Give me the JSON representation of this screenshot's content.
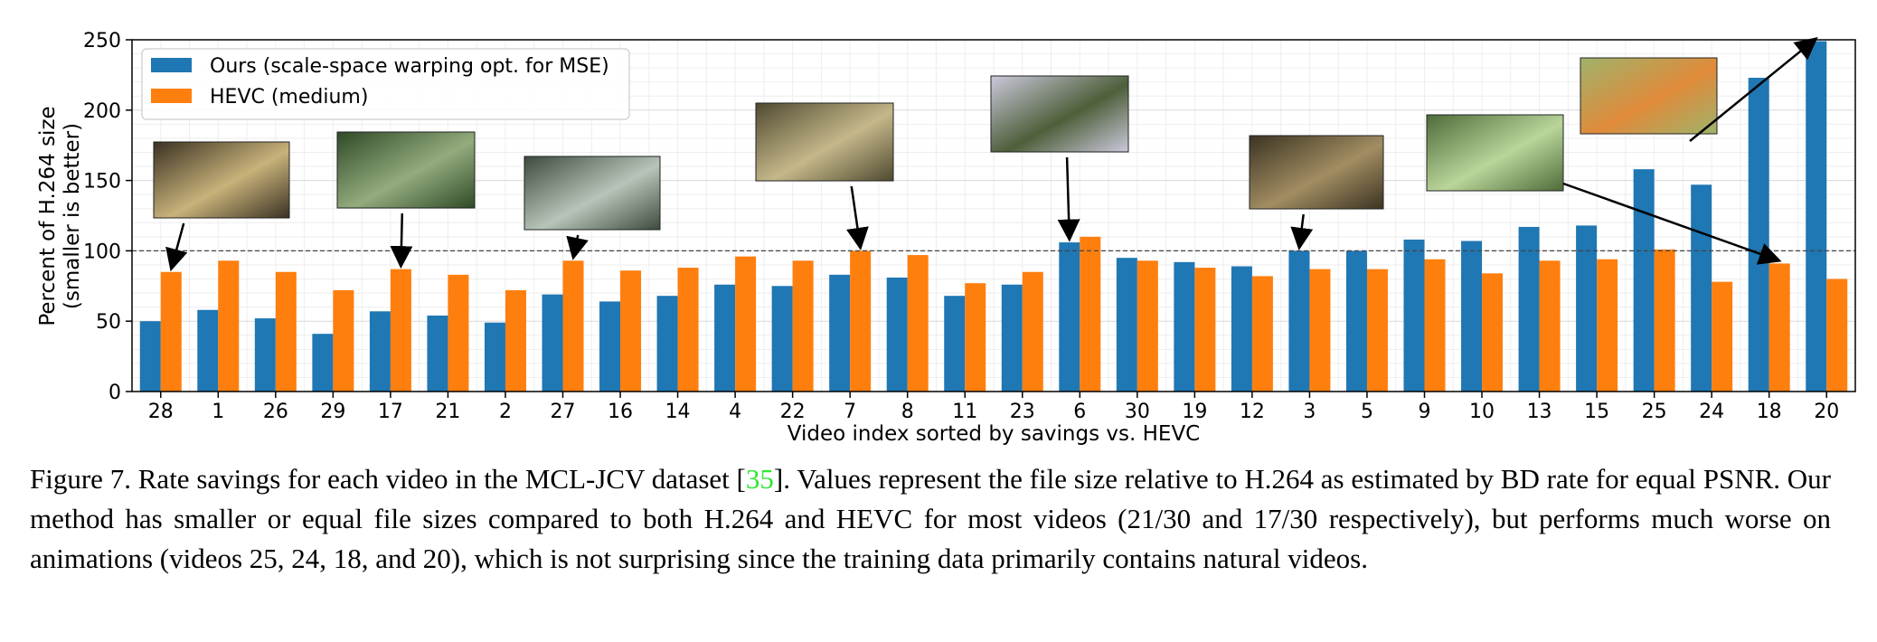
{
  "chart_data": {
    "type": "bar",
    "categories": [
      "28",
      "1",
      "26",
      "29",
      "17",
      "21",
      "2",
      "27",
      "16",
      "14",
      "4",
      "22",
      "7",
      "8",
      "11",
      "23",
      "6",
      "30",
      "19",
      "12",
      "3",
      "5",
      "9",
      "10",
      "13",
      "15",
      "25",
      "24",
      "18",
      "20"
    ],
    "series": [
      {
        "name": "Ours (scale-space warping opt. for MSE)",
        "color": "#1f77b4",
        "values": [
          50,
          58,
          52,
          41,
          57,
          54,
          49,
          69,
          64,
          68,
          76,
          75,
          83,
          81,
          68,
          76,
          106,
          95,
          92,
          89,
          100,
          100,
          108,
          107,
          117,
          118,
          158,
          147,
          223,
          249
        ]
      },
      {
        "name": "HEVC (medium)",
        "color": "#ff7f0e",
        "values": [
          85,
          93,
          85,
          72,
          87,
          83,
          72,
          93,
          86,
          88,
          96,
          93,
          100,
          97,
          77,
          85,
          110,
          93,
          88,
          82,
          87,
          87,
          94,
          84,
          93,
          94,
          101,
          78,
          91,
          80
        ]
      }
    ],
    "xlabel": "Video index sorted by savings vs. HEVC",
    "ylabel": [
      "Percent of H.264 size",
      "(smaller is better)"
    ],
    "ylim": [
      0,
      250
    ],
    "yticks": [
      0,
      50,
      100,
      150,
      200,
      250
    ],
    "reference_line": 100,
    "grid": true,
    "legend_position": "top-left",
    "annotated_videos": [
      "28",
      "17",
      "27",
      "7",
      "6",
      "3",
      "18",
      "20"
    ]
  },
  "caption": {
    "prefix": "Figure 7. Rate savings for each video in the MCL-JCV dataset [",
    "ref": "35",
    "suffix": "]. Values represent the file size relative to H.264 as estimated by BD rate for equal PSNR. Our method has smaller or equal file sizes compared to both H.264 and HEVC for most videos (21/30 and 17/30 respectively), but performs much worse on animations (videos 25, 24, 18, and 20), which is not surprising since the training data primarily contains natural videos."
  }
}
